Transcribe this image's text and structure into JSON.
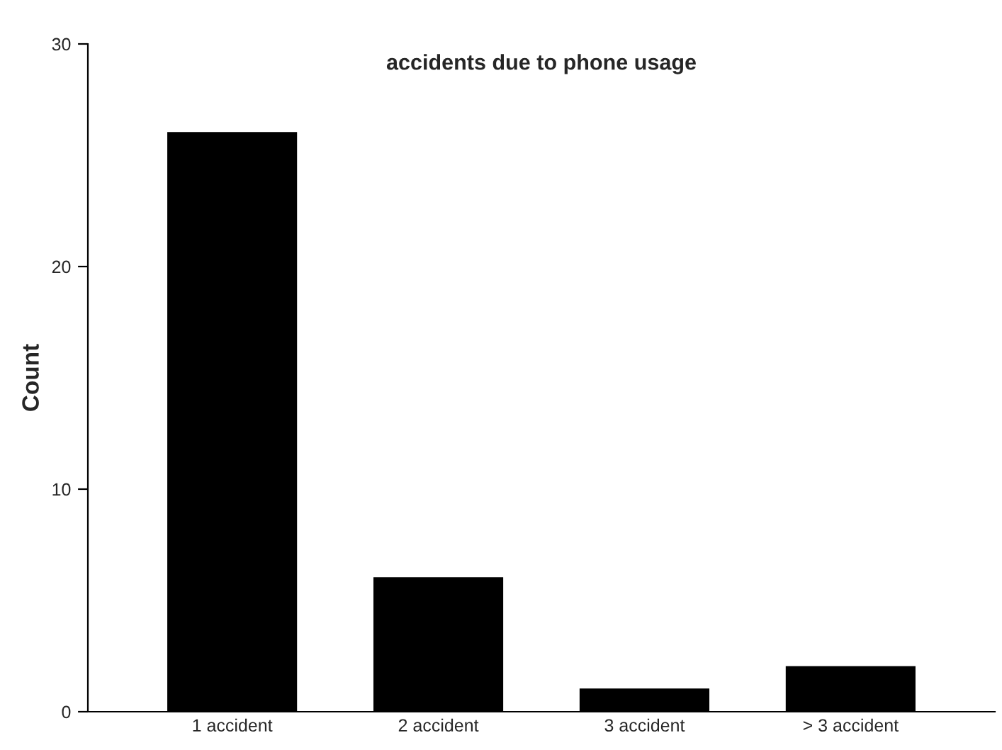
{
  "chart_data": {
    "type": "bar",
    "title": "accidents due to phone usage",
    "ylabel": "Count",
    "categories": [
      "1 accident",
      "2 accident",
      "3 accident",
      "> 3 accident"
    ],
    "values": [
      26,
      6,
      1,
      2
    ],
    "color": "#000000",
    "ylim": [
      0,
      30
    ],
    "yticks": [
      0,
      10,
      20,
      30
    ],
    "grid": false,
    "legend": false
  }
}
